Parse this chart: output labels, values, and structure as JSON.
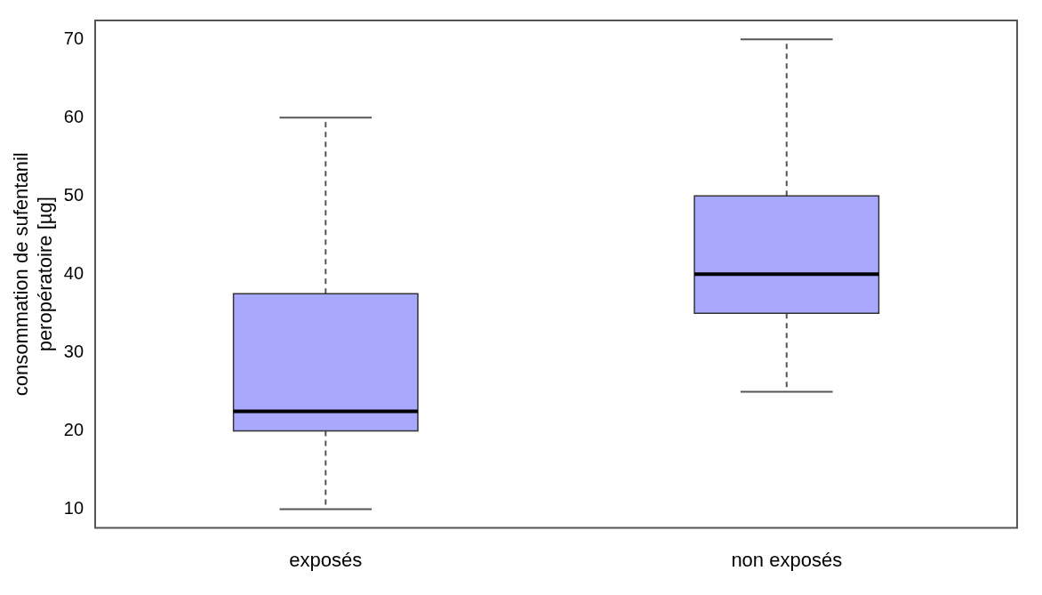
{
  "chart_data": {
    "type": "box",
    "ylabel": "consommation de sufentanil\nperopératoire [µg]",
    "categories": [
      "exposés",
      "non exposés"
    ],
    "color": "#a8a8ff",
    "boxes": [
      {
        "low": 10,
        "q1": 20,
        "median": 22.5,
        "q3": 37.5,
        "high": 60
      },
      {
        "low": 25,
        "q1": 35,
        "median": 40,
        "q3": 50,
        "high": 70
      }
    ],
    "ylim": [
      7.6,
      72.4
    ],
    "yticks": [
      10,
      20,
      30,
      40,
      50,
      60,
      70
    ],
    "grid": false,
    "legend": false
  }
}
